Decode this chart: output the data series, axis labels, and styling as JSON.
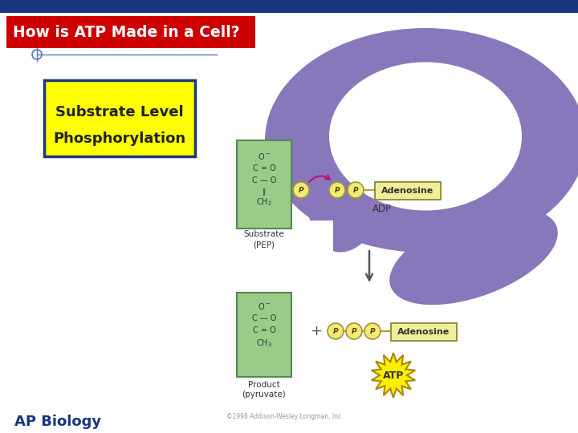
{
  "title": "How is ATP Made in a Cell?",
  "subtitle1": "Substrate Level",
  "subtitle2": "Phosphorylation",
  "footer": "AP Biology",
  "copyright": "©1998 Addison-Wesley Longman, Inc.",
  "bg_color": "#FFFFFF",
  "header_bar_color": "#1a3580",
  "title_box_color": "#CC0000",
  "title_text_color": "#FFFFFF",
  "subtitle_box_color": "#FFFF00",
  "subtitle_border_color": "#1a3580",
  "subtitle_text_color": "#222222",
  "enzyme_blob_color": "#8878BB",
  "enzyme_blob_inner": "#FFFFFF",
  "substrate_box_color": "#99CC88",
  "adp_box_color": "#F0EE99",
  "adp_box_border": "#888833",
  "atp_star_color": "#FFEE00",
  "atp_star_border": "#AA8800",
  "arrow_color": "#555555",
  "pink_arrow_color": "#BB1177",
  "footer_color": "#1a3580",
  "phosphate_circle_color": "#F5E878",
  "phosphate_border_color": "#999933",
  "phosphate_text_color": "#444400",
  "line_color": "#5577BB",
  "cross_color": "#5577BB"
}
